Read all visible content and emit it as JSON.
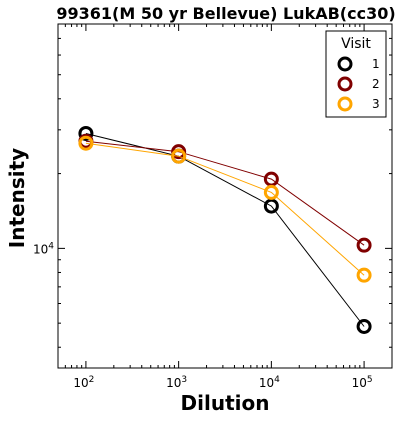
{
  "chart_data": {
    "type": "line",
    "title": "99361(M 50 yr Bellevue) LukAB(cc30)",
    "xlabel": "Dilution",
    "ylabel": "Intensity",
    "x_scale": "log",
    "y_scale": "log",
    "x": [
      100,
      1000,
      10000,
      100000
    ],
    "x_tick_labels": [
      {
        "base": "10",
        "exp": "2"
      },
      {
        "base": "10",
        "exp": "3"
      },
      {
        "base": "10",
        "exp": "4"
      },
      {
        "base": "10",
        "exp": "5"
      }
    ],
    "y_tick_labels": [
      {
        "base": "10",
        "exp": "4",
        "value": 10000
      }
    ],
    "xlim": [
      50,
      200000
    ],
    "ylim": [
      3300,
      80000
    ],
    "grid": false,
    "legend": {
      "title": "Visit",
      "placement": "top-right"
    },
    "series": [
      {
        "name": "1",
        "color": "#000000",
        "values": [
          29000,
          23500,
          14800,
          4850
        ]
      },
      {
        "name": "2",
        "color": "#800000",
        "values": [
          27000,
          24500,
          19000,
          10300
        ]
      },
      {
        "name": "3",
        "color": "#FFA500",
        "values": [
          26500,
          23500,
          16800,
          7800
        ]
      }
    ]
  }
}
